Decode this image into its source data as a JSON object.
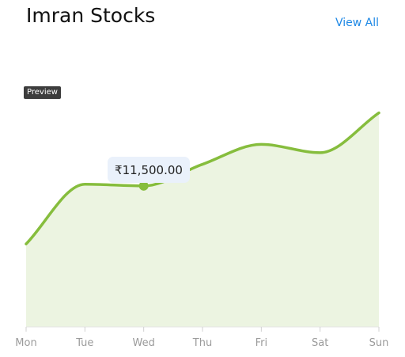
{
  "header": {
    "title": "Imran Stocks",
    "view_all_label": "View All"
  },
  "badge": {
    "label": "Preview"
  },
  "tooltip": {
    "text": "₹11,500.00",
    "category": "Wed"
  },
  "colors": {
    "line": "#86bd3d",
    "area": "#ecf4e1",
    "axis": "#e4e4e4",
    "tick_label": "#9b9b9b",
    "link": "#1e88e5"
  },
  "chart_data": {
    "type": "area",
    "categories": [
      "Mon",
      "Tue",
      "Wed",
      "Thu",
      "Fri",
      "Sat",
      "Sun"
    ],
    "series": [
      {
        "values": [
          8000,
          11600,
          11500,
          12800,
          14000,
          13500,
          15900
        ]
      }
    ],
    "ylim": [
      3000,
      16500
    ],
    "smooth": true,
    "highlight_index": 2
  }
}
